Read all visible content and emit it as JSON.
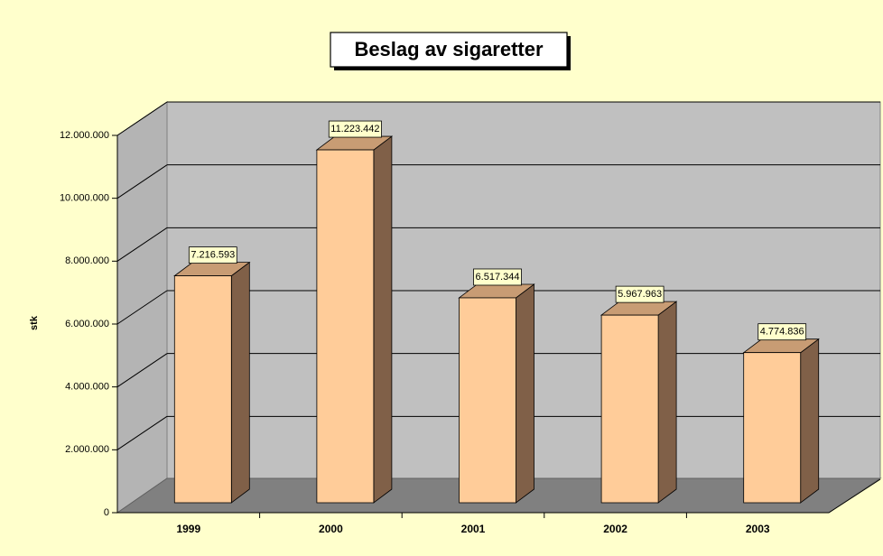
{
  "chart_data": {
    "type": "bar3d",
    "title": "Beslag av sigaretter",
    "y_label": "stk",
    "categories": [
      "1999",
      "2000",
      "2001",
      "2002",
      "2003"
    ],
    "values": [
      7216593,
      11223442,
      6517344,
      5967963,
      4774836
    ],
    "value_labels": [
      "7.216.593",
      "11.223.442",
      "6.517.344",
      "5.967.963",
      "4.774.836"
    ],
    "color": "#ffcc99",
    "ylim": [
      0,
      12000000
    ],
    "yticks": [
      0,
      {
        "value": 2000000,
        "label": "2.000.000"
      },
      {
        "value": 4000000,
        "label": "4.000.000"
      },
      {
        "value": 6000000,
        "label": "6.000.000"
      },
      {
        "value": 8000000,
        "label": "8.000.000"
      },
      {
        "value": 10000000,
        "label": "10.000.000"
      },
      {
        "value": 12000000,
        "label": "12.000.000"
      }
    ],
    "grid": true
  }
}
